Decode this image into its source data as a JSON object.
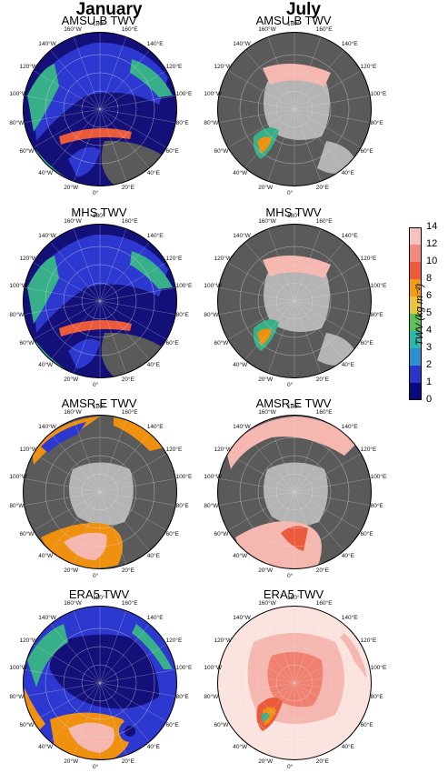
{
  "columns": {
    "left": "January",
    "right": "July"
  },
  "panels": [
    {
      "title": "AMSU-B TWV",
      "month": "January"
    },
    {
      "title": "AMSU-B TWV",
      "month": "July"
    },
    {
      "title": "MHS TWV",
      "month": "January"
    },
    {
      "title": "MHS TWV",
      "month": "July"
    },
    {
      "title": "AMSR-E TWV",
      "month": "January"
    },
    {
      "title": "AMSR-E TWV",
      "month": "July"
    },
    {
      "title": "ERA5 TWV",
      "month": "January"
    },
    {
      "title": "ERA5 TWV",
      "month": "July"
    }
  ],
  "longitude_labels": [
    "180°",
    "160°E",
    "140°E",
    "120°E",
    "100°E",
    "80°E",
    "60°E",
    "40°E",
    "20°E",
    "0°",
    "20°W",
    "40°W",
    "60°W",
    "80°W",
    "100°W",
    "120°W",
    "140°W",
    "160°W"
  ],
  "colorbar": {
    "label": "TWV (kg m⁻²)",
    "ticks": [
      "14",
      "12",
      "10",
      "8",
      "6",
      "5",
      "4",
      "3",
      "2",
      "1",
      "0"
    ],
    "colors": [
      "#ffffff",
      "#f7c2bd",
      "#f28a80",
      "#ef5a3c",
      "#f39b12",
      "#e8c53a",
      "#5fbf5a",
      "#2fb8a8",
      "#2b8fd0",
      "#2a36c8",
      "#0a0a80"
    ]
  },
  "colors": {
    "land": "#5a5a5a",
    "ice": "#b4b4b4",
    "deep": "#14107a",
    "blue": "#2d38d0",
    "green": "#37b08a",
    "orange": "#f0900f",
    "pink": "#f5b7b0",
    "red": "#ec5a3c"
  }
}
